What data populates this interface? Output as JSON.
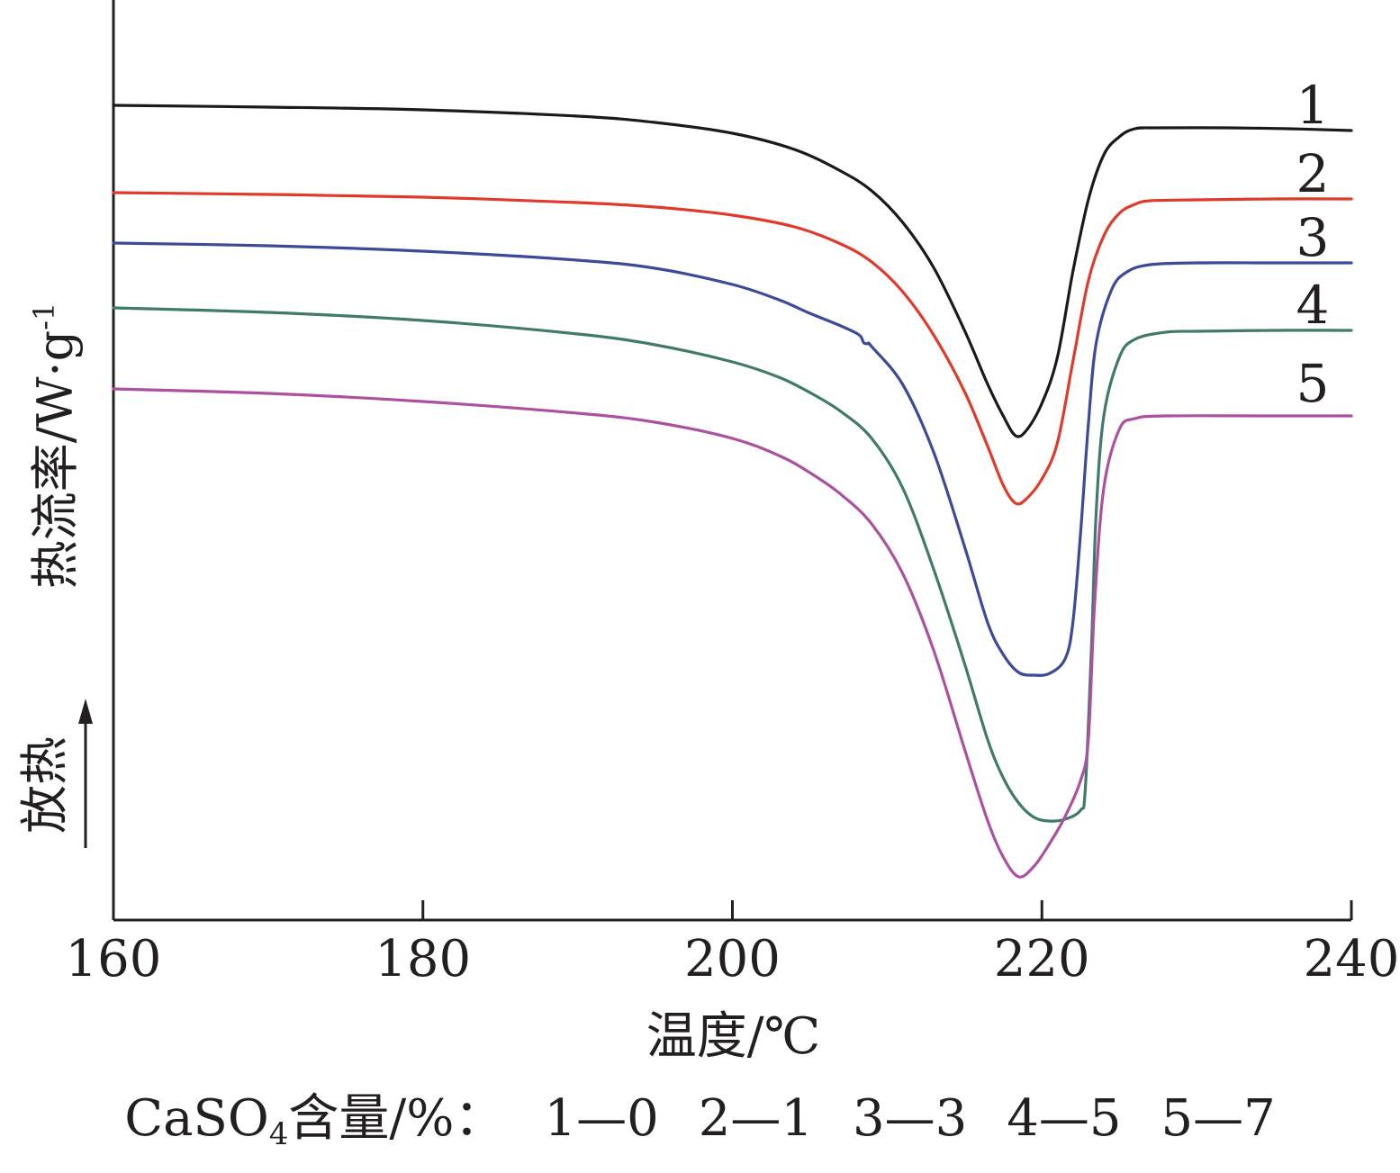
{
  "chart_data": {
    "type": "line",
    "xlabel": "温度/℃",
    "ylabel": "热流率/W·g",
    "ylabel_sup": "-1",
    "exo_label": "放热",
    "xlim": [
      160,
      240
    ],
    "xticks": [
      160,
      180,
      200,
      220,
      240
    ],
    "y_axis_ticks": "none",
    "grid": false,
    "series": [
      {
        "name": "1",
        "color": "#1a1a1a",
        "points": [
          [
            160,
            0.905
          ],
          [
            170,
            0.903
          ],
          [
            180,
            0.9
          ],
          [
            190,
            0.893
          ],
          [
            195,
            0.886
          ],
          [
            200,
            0.874
          ],
          [
            204,
            0.856
          ],
          [
            207,
            0.832
          ],
          [
            209,
            0.81
          ],
          [
            211,
            0.775
          ],
          [
            213,
            0.725
          ],
          [
            215,
            0.655
          ],
          [
            216.5,
            0.595
          ],
          [
            217.5,
            0.56
          ],
          [
            218.3,
            0.538
          ],
          [
            219,
            0.544
          ],
          [
            220,
            0.574
          ],
          [
            221,
            0.625
          ],
          [
            222,
            0.72
          ],
          [
            223,
            0.8
          ],
          [
            224,
            0.85
          ],
          [
            225,
            0.87
          ],
          [
            226,
            0.879
          ],
          [
            227.5,
            0.88
          ],
          [
            232,
            0.88
          ],
          [
            236,
            0.879
          ],
          [
            240,
            0.877
          ]
        ]
      },
      {
        "name": "2",
        "color": "#e03a2b",
        "points": [
          [
            160,
            0.808
          ],
          [
            170,
            0.806
          ],
          [
            180,
            0.803
          ],
          [
            190,
            0.797
          ],
          [
            195,
            0.792
          ],
          [
            200,
            0.783
          ],
          [
            204,
            0.77
          ],
          [
            207,
            0.751
          ],
          [
            209,
            0.731
          ],
          [
            211,
            0.698
          ],
          [
            213,
            0.65
          ],
          [
            215,
            0.587
          ],
          [
            216.5,
            0.526
          ],
          [
            217.5,
            0.483
          ],
          [
            218.3,
            0.463
          ],
          [
            219,
            0.468
          ],
          [
            220,
            0.49
          ],
          [
            221,
            0.53
          ],
          [
            222,
            0.62
          ],
          [
            223,
            0.71
          ],
          [
            224,
            0.76
          ],
          [
            225,
            0.785
          ],
          [
            226,
            0.795
          ],
          [
            227,
            0.799
          ],
          [
            230,
            0.8
          ],
          [
            235,
            0.801
          ],
          [
            240,
            0.801
          ]
        ]
      },
      {
        "name": "3",
        "color": "#3c4a98",
        "points": [
          [
            160,
            0.752
          ],
          [
            170,
            0.749
          ],
          [
            180,
            0.743
          ],
          [
            190,
            0.733
          ],
          [
            195,
            0.724
          ],
          [
            200,
            0.706
          ],
          [
            203,
            0.689
          ],
          [
            205,
            0.674
          ],
          [
            207,
            0.66
          ],
          [
            208,
            0.652
          ],
          [
            208.3,
            0.648
          ],
          [
            208.5,
            0.641
          ],
          [
            208.8,
            0.64
          ],
          [
            209,
            0.637
          ],
          [
            211,
            0.595
          ],
          [
            213,
            0.52
          ],
          [
            215,
            0.415
          ],
          [
            216.5,
            0.33
          ],
          [
            217.5,
            0.295
          ],
          [
            218.5,
            0.275
          ],
          [
            219.5,
            0.272
          ],
          [
            220.5,
            0.274
          ],
          [
            221.5,
            0.29
          ],
          [
            222,
            0.33
          ],
          [
            222.5,
            0.43
          ],
          [
            223,
            0.55
          ],
          [
            223.5,
            0.64
          ],
          [
            224.5,
            0.7
          ],
          [
            225.5,
            0.72
          ],
          [
            227,
            0.728
          ],
          [
            230,
            0.73
          ],
          [
            235,
            0.73
          ],
          [
            240,
            0.73
          ]
        ]
      },
      {
        "name": "4",
        "color": "#3f7a6a",
        "points": [
          [
            160,
            0.68
          ],
          [
            170,
            0.675
          ],
          [
            180,
            0.666
          ],
          [
            190,
            0.651
          ],
          [
            195,
            0.639
          ],
          [
            200,
            0.62
          ],
          [
            203,
            0.603
          ],
          [
            205,
            0.586
          ],
          [
            207,
            0.565
          ],
          [
            209,
            0.535
          ],
          [
            211,
            0.48
          ],
          [
            213,
            0.39
          ],
          [
            215,
            0.285
          ],
          [
            216.5,
            0.2
          ],
          [
            217.5,
            0.158
          ],
          [
            218.5,
            0.13
          ],
          [
            219.5,
            0.114
          ],
          [
            220.5,
            0.11
          ],
          [
            221.5,
            0.112
          ],
          [
            222.5,
            0.122
          ],
          [
            222.8,
            0.145
          ],
          [
            223.2,
            0.3
          ],
          [
            223.5,
            0.45
          ],
          [
            224,
            0.56
          ],
          [
            225,
            0.625
          ],
          [
            226,
            0.645
          ],
          [
            228,
            0.653
          ],
          [
            230,
            0.654
          ],
          [
            235,
            0.655
          ],
          [
            240,
            0.655
          ]
        ]
      },
      {
        "name": "5",
        "color": "#ab519f",
        "points": [
          [
            160,
            0.59
          ],
          [
            170,
            0.585
          ],
          [
            180,
            0.576
          ],
          [
            190,
            0.563
          ],
          [
            195,
            0.553
          ],
          [
            200,
            0.535
          ],
          [
            203,
            0.516
          ],
          [
            205,
            0.497
          ],
          [
            207,
            0.473
          ],
          [
            209,
            0.44
          ],
          [
            211,
            0.385
          ],
          [
            213,
            0.3
          ],
          [
            215,
            0.19
          ],
          [
            216.5,
            0.11
          ],
          [
            217.5,
            0.07
          ],
          [
            218.5,
            0.048
          ],
          [
            219.5,
            0.06
          ],
          [
            220.5,
            0.085
          ],
          [
            221.5,
            0.115
          ],
          [
            222.5,
            0.155
          ],
          [
            223,
            0.2
          ],
          [
            223.4,
            0.35
          ],
          [
            224,
            0.48
          ],
          [
            225,
            0.545
          ],
          [
            226,
            0.557
          ],
          [
            228,
            0.56
          ],
          [
            235,
            0.56
          ],
          [
            240,
            0.56
          ]
        ]
      }
    ],
    "caption": {
      "formula_base": "CaSO",
      "formula_sub": "4",
      "text": "含量/%：",
      "entries": [
        "1—0",
        "2—1",
        "3—3",
        "4—5",
        "5—7"
      ]
    }
  }
}
